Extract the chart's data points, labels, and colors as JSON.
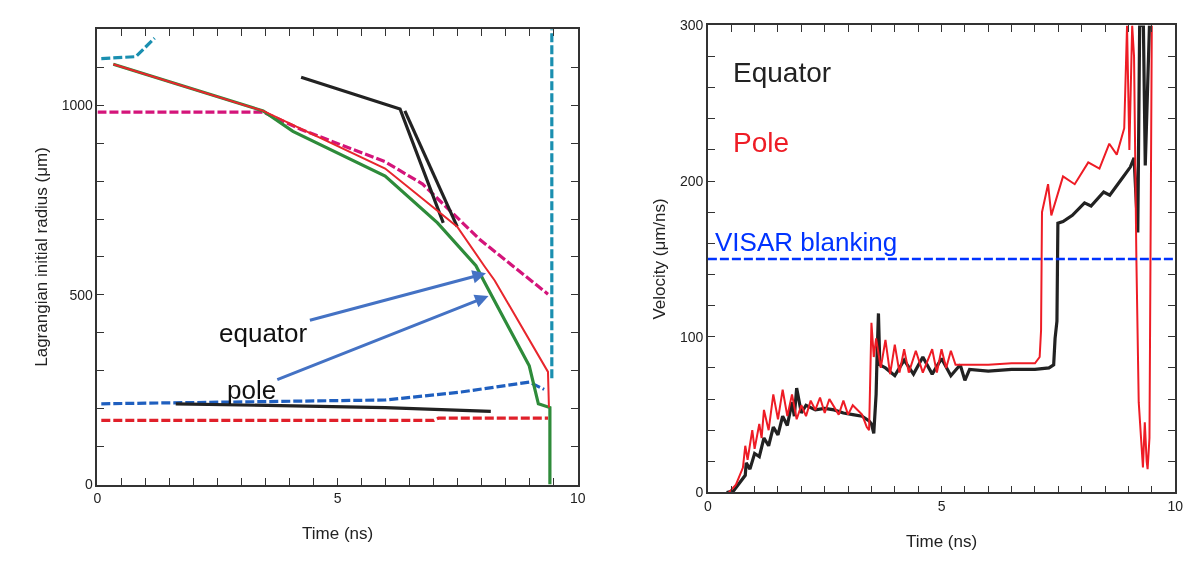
{
  "chart_data": [
    {
      "type": "line",
      "xlabel": "Time (ns)",
      "ylabel": "Lagrangian initial radius (μm)",
      "xlim": [
        0,
        10
      ],
      "ylim": [
        0,
        1200
      ],
      "xticks": [
        0,
        {
          "value": 0.5,
          "label": null
        },
        {
          "value": 1,
          "label": null
        },
        {
          "value": 1.5,
          "label": null
        },
        {
          "value": 2,
          "label": null
        },
        {
          "value": 2.5,
          "label": null
        },
        {
          "value": 3,
          "label": null
        },
        {
          "value": 3.5,
          "label": null
        },
        {
          "value": 4,
          "label": null
        },
        {
          "value": 4.5,
          "label": null
        },
        5,
        {
          "value": 5.5,
          "label": null
        },
        {
          "value": 6,
          "label": null
        },
        {
          "value": 6.5,
          "label": null
        },
        {
          "value": 7,
          "label": null
        },
        {
          "value": 7.5,
          "label": null
        },
        {
          "value": 8,
          "label": null
        },
        {
          "value": 8.5,
          "label": null
        },
        {
          "value": 9,
          "label": null
        },
        {
          "value": 9.5,
          "label": null
        },
        10
      ],
      "yticks": [
        0,
        {
          "value": 100,
          "label": null
        },
        {
          "value": 200,
          "label": null
        },
        {
          "value": 300,
          "label": null
        },
        {
          "value": 400,
          "label": null
        },
        500,
        {
          "value": 600,
          "label": null
        },
        {
          "value": 700,
          "label": null
        },
        {
          "value": 800,
          "label": null
        },
        {
          "value": 900,
          "label": null
        },
        1000,
        {
          "value": 1100,
          "label": null
        },
        {
          "value": 1200,
          "label": null
        }
      ],
      "legend": false,
      "marker": "none",
      "series": [
        {
          "color": "#d4147a",
          "line_style": "dashed",
          "x": [
            0,
            3.45,
            4.24,
            5.99,
            6.77,
            7.96,
            9.38
          ],
          "values": [
            982,
            982,
            936,
            851,
            792,
            646,
            502
          ]
        },
        {
          "color": "#1a8fb0",
          "line_style": "dashed",
          "x": [
            0.08,
            0.8,
            1.19
          ],
          "values": [
            1123,
            1128,
            1177
          ]
        },
        {
          "color": "#1a8fb0",
          "line_style": "dashed",
          "x": [
            9.46,
            9.46
          ],
          "values": [
            280,
            1200
          ]
        },
        {
          "color": "#1f5fbf",
          "line_style": "dashed",
          "x": [
            0.08,
            5.99,
            7.57,
            8.99,
            9.3
          ],
          "values": [
            213,
            223,
            244,
            270,
            251
          ]
        },
        {
          "color": "#e0202a",
          "line_style": "dashed",
          "x": [
            0.08,
            7.0,
            7.1,
            9.38
          ],
          "values": [
            169,
            169,
            175,
            175
          ]
        },
        {
          "color": "#222222",
          "line_style": "solid",
          "x": [
            4.24,
            6.3,
            7.2
          ],
          "values": [
            1074,
            990,
            690
          ]
        },
        {
          "color": "#222222",
          "line_style": "solid",
          "x": [
            6.4,
            7.49
          ],
          "values": [
            985,
            680
          ]
        },
        {
          "color": "#222222",
          "line_style": "solid",
          "x": [
            1.63,
            5.99,
            8.19
          ],
          "values": [
            213,
            203,
            193
          ]
        },
        {
          "color": "#2e8b3a",
          "line_style": "solid",
          "x": [
            0.33,
            3.45,
            4.07,
            5.99,
            7.08,
            7.88,
            8.04,
            8.99,
            9.18,
            9.42,
            9.42
          ],
          "values": [
            1108,
            985,
            931,
            813,
            690,
            577,
            538,
            313,
            213,
            203,
            0
          ]
        },
        {
          "color": "#e8262d",
          "line_style": "solid",
          "x": [
            0.33,
            3.45,
            5.99,
            7.49,
            8.05,
            8.27,
            9.38,
            9.4
          ],
          "values": [
            1108,
            985,
            833,
            680,
            577,
            538,
            297,
            203
          ]
        }
      ],
      "annotations": [
        {
          "text": "equator",
          "x": 8.15,
          "y": 559
        },
        {
          "text": "pole",
          "x": 8.2,
          "y": 500
        }
      ]
    },
    {
      "type": "line",
      "xlabel": "Time (ns)",
      "ylabel": "Velocity (μm/ns)",
      "xlim": [
        0,
        10
      ],
      "ylim": [
        0,
        300
      ],
      "xticks": [
        0,
        {
          "value": 0.5,
          "label": null
        },
        {
          "value": 1,
          "label": null
        },
        {
          "value": 1.5,
          "label": null
        },
        {
          "value": 2,
          "label": null
        },
        {
          "value": 2.5,
          "label": null
        },
        {
          "value": 3,
          "label": null
        },
        {
          "value": 3.5,
          "label": null
        },
        {
          "value": 4,
          "label": null
        },
        {
          "value": 4.5,
          "label": null
        },
        5,
        {
          "value": 5.5,
          "label": null
        },
        {
          "value": 6,
          "label": null
        },
        {
          "value": 6.5,
          "label": null
        },
        {
          "value": 7,
          "label": null
        },
        {
          "value": 7.5,
          "label": null
        },
        {
          "value": 8,
          "label": null
        },
        {
          "value": 8.5,
          "label": null
        },
        {
          "value": 9,
          "label": null
        },
        {
          "value": 9.5,
          "label": null
        },
        10
      ],
      "yticks": [
        0,
        {
          "value": 20,
          "label": null
        },
        {
          "value": 40,
          "label": null
        },
        {
          "value": 60,
          "label": null
        },
        {
          "value": 80,
          "label": null
        },
        100,
        {
          "value": 120,
          "label": null
        },
        {
          "value": 140,
          "label": null
        },
        {
          "value": 160,
          "label": null
        },
        {
          "value": 180,
          "label": null
        },
        200,
        {
          "value": 220,
          "label": null
        },
        {
          "value": 240,
          "label": null
        },
        {
          "value": 260,
          "label": null
        },
        {
          "value": 280,
          "label": null
        },
        300
      ],
      "legend": "top left",
      "marker": "none",
      "series": [
        {
          "name": "Equator",
          "color": "#222222",
          "line_style": "solid",
          "x": [
            0.4,
            0.55,
            0.8,
            0.82,
            0.9,
            1.0,
            1.1,
            1.2,
            1.3,
            1.4,
            1.5,
            1.6,
            1.7,
            1.8,
            1.85,
            1.9,
            2.0,
            2.1,
            2.3,
            2.5,
            2.7,
            2.9,
            3.1,
            3.3,
            3.45,
            3.5,
            3.55,
            3.6,
            3.62,
            3.65,
            3.68,
            3.8,
            4.0,
            4.2,
            4.4,
            4.6,
            4.8,
            5.0,
            5.2,
            5.4,
            5.5,
            5.6,
            6.0,
            6.5,
            7.0,
            7.3,
            7.4,
            7.43,
            7.47,
            7.49,
            7.6,
            7.8,
            8.06,
            8.2,
            8.47,
            8.6,
            8.87,
            9.04,
            9.12,
            9.2,
            9.24,
            9.32,
            9.36,
            9.45
          ],
          "values": [
            0,
            1,
            11,
            19,
            15,
            25,
            23,
            35,
            30,
            42,
            37,
            49,
            43,
            58,
            49,
            67,
            51,
            56,
            53,
            54,
            53,
            51,
            50,
            49,
            46,
            44,
            38,
            63,
            87,
            115,
            82,
            80,
            75,
            85,
            76,
            87,
            76,
            86,
            75,
            82,
            72,
            79,
            78,
            79,
            79,
            80,
            82,
            99,
            110,
            173,
            174,
            178,
            186,
            184,
            193,
            191,
            202,
            209,
            215,
            167,
            300,
            300,
            210,
            300
          ]
        },
        {
          "name": "Pole",
          "color": "#ee1c25",
          "line_style": "solid",
          "x": [
            0.45,
            0.6,
            0.75,
            0.8,
            0.85,
            0.95,
            1.0,
            1.1,
            1.15,
            1.2,
            1.3,
            1.4,
            1.5,
            1.6,
            1.7,
            1.8,
            1.9,
            2.0,
            2.1,
            2.2,
            2.3,
            2.4,
            2.5,
            2.6,
            2.8,
            2.9,
            3.0,
            3.1,
            3.3,
            3.4,
            3.45,
            3.5,
            3.55,
            3.6,
            3.7,
            3.8,
            3.9,
            4.0,
            4.1,
            4.2,
            4.3,
            4.45,
            4.6,
            4.8,
            4.9,
            5.0,
            5.1,
            5.2,
            5.3,
            5.5,
            6.0,
            6.5,
            7.0,
            7.1,
            7.13,
            7.15,
            7.28,
            7.35,
            7.6,
            7.85,
            8.14,
            8.38,
            8.59,
            8.75,
            8.91,
            8.97,
            9.02,
            9.08,
            9.12,
            9.17,
            9.22,
            9.31,
            9.35,
            9.39,
            9.41,
            9.45,
            9.5
          ],
          "values": [
            0,
            5,
            16,
            30,
            21,
            40,
            28,
            44,
            35,
            53,
            40,
            63,
            47,
            66,
            49,
            63,
            47,
            56,
            49,
            59,
            53,
            61,
            51,
            60,
            50,
            59,
            50,
            56,
            50,
            42,
            40,
            109,
            87,
            99,
            80,
            98,
            76,
            95,
            77,
            92,
            77,
            91,
            77,
            92,
            77,
            92,
            80,
            91,
            82,
            82,
            82,
            83,
            83,
            87,
            104,
            180,
            198,
            178,
            203,
            198,
            212,
            208,
            224,
            217,
            234,
            300,
            220,
            300,
            280,
            150,
            58,
            16,
            45,
            20,
            15,
            35,
            300
          ]
        }
      ],
      "ref_lines": [
        {
          "axis": "y",
          "value": 150,
          "label": "VISAR blanking",
          "color": "#0033ff",
          "line_style": "dashed"
        }
      ]
    }
  ]
}
